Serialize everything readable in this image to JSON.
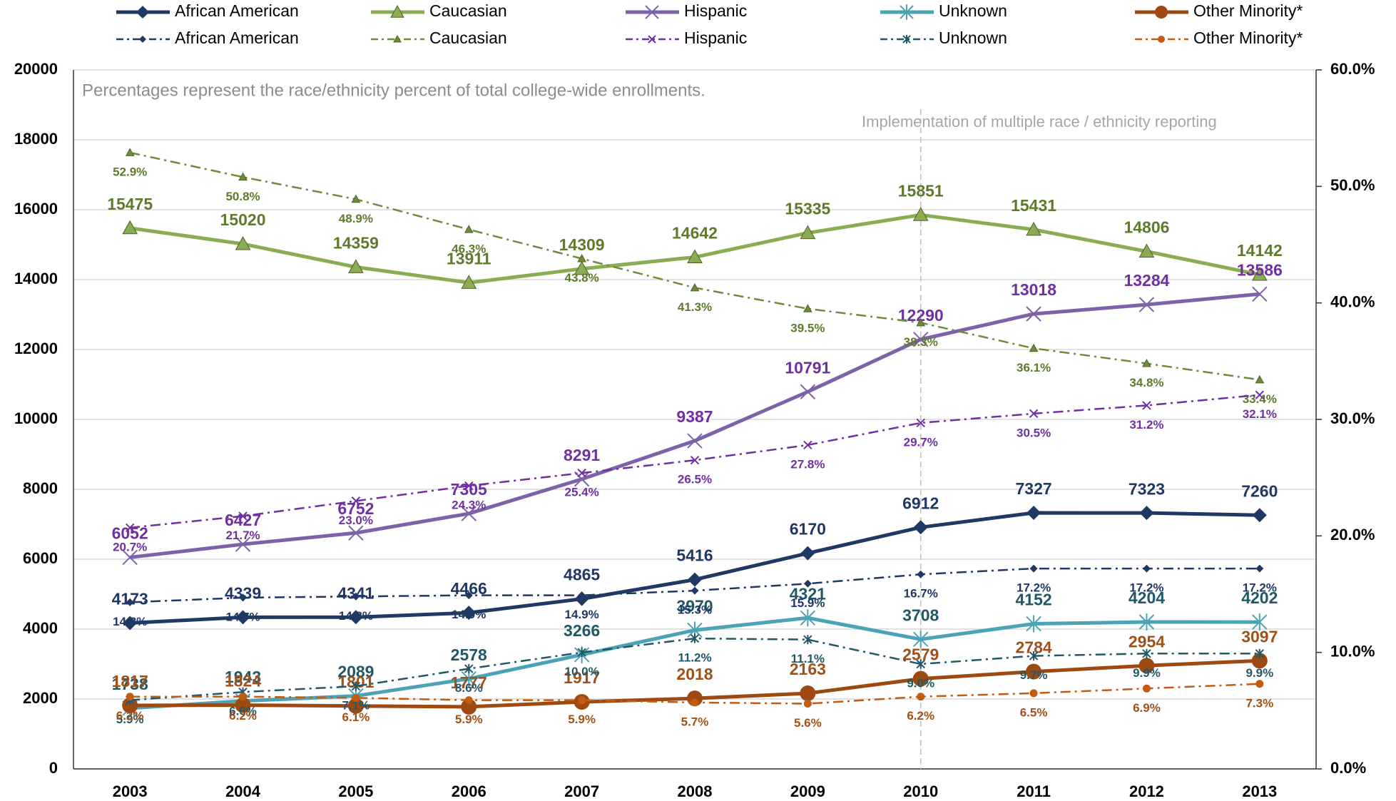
{
  "chart_data": {
    "type": "line",
    "categories": [
      "2003",
      "2004",
      "2005",
      "2006",
      "2007",
      "2008",
      "2009",
      "2010",
      "2011",
      "2012",
      "2013"
    ],
    "ylim": [
      0,
      20000
    ],
    "yticks": [
      0,
      2000,
      4000,
      6000,
      8000,
      10000,
      12000,
      14000,
      16000,
      18000,
      20000
    ],
    "y2lim": [
      0,
      60
    ],
    "y2ticks": [
      {
        "value": 0,
        "label": "0.0%"
      },
      {
        "value": 10,
        "label": "10.0%"
      },
      {
        "value": 20,
        "label": "20.0%"
      },
      {
        "value": 30,
        "label": "30.0%"
      },
      {
        "value": 40,
        "label": "40.0%"
      },
      {
        "value": 50,
        "label": "50.0%"
      },
      {
        "value": 60,
        "label": "60.0%"
      }
    ],
    "grid": true,
    "legend": "top",
    "annotations": [
      {
        "text": "Percentages represent the race/ethnicity percent of total college-wide enrollments."
      },
      {
        "text": "Implementation of multiple race / ethnicity reporting",
        "x": "2010"
      }
    ],
    "series": [
      {
        "name": "African American",
        "color": "#1f3864",
        "label_color": "#1f3864",
        "marker": "diamond",
        "style": "solid",
        "values": [
          4173,
          4339,
          4341,
          4466,
          4865,
          5416,
          6170,
          6912,
          7327,
          7323,
          7260
        ]
      },
      {
        "name": "Caucasian",
        "color": "#8aac52",
        "label_color": "#5f7a2c",
        "marker": "triangle",
        "style": "solid",
        "values": [
          15475,
          15020,
          14359,
          13911,
          14309,
          14642,
          15335,
          15851,
          15431,
          14806,
          14142
        ]
      },
      {
        "name": "Hispanic",
        "color": "#7d62a8",
        "label_color": "#7030a0",
        "marker": "x",
        "style": "solid",
        "values": [
          6052,
          6427,
          6752,
          7305,
          8291,
          9387,
          10791,
          12290,
          13018,
          13284,
          13586
        ]
      },
      {
        "name": "Unknown",
        "color": "#4ba3b5",
        "label_color": "#215868",
        "marker": "asterisk",
        "style": "solid",
        "values": [
          1738,
          1943,
          2089,
          2578,
          3266,
          3970,
          4321,
          3708,
          4152,
          4204,
          4202
        ]
      },
      {
        "name": "Other Minority*",
        "color": "#9c4a12",
        "label_color": "#a0511a",
        "marker": "circle",
        "style": "solid",
        "values": [
          1817,
          1824,
          1801,
          1777,
          1917,
          2018,
          2163,
          2579,
          2784,
          2954,
          3097
        ]
      },
      {
        "name": "African American",
        "color": "#1f3864",
        "label_color": "#1f3864",
        "marker": "diamond",
        "style": "dashdot",
        "axis": "y2",
        "values": [
          14.3,
          14.7,
          14.8,
          14.9,
          14.9,
          15.3,
          15.9,
          16.7,
          17.2,
          17.2,
          17.2
        ],
        "value_labels": [
          "14.3%",
          "14.7%",
          "14.8%",
          "14.9%",
          "14.9%",
          "15.3%",
          "15.9%",
          "16.7%",
          "17.2%",
          "17.2%",
          "17.2%"
        ]
      },
      {
        "name": "Caucasian",
        "color": "#6e8b3d",
        "label_color": "#5f7a2c",
        "marker": "triangle",
        "style": "dashdot",
        "axis": "y2",
        "values": [
          52.9,
          50.8,
          48.9,
          46.3,
          43.8,
          41.3,
          39.5,
          38.3,
          36.1,
          34.8,
          33.4
        ],
        "value_labels": [
          "52.9%",
          "50.8%",
          "48.9%",
          "46.3%",
          "43.8%",
          "41.3%",
          "39.5%",
          "38.3%",
          "36.1%",
          "34.8%",
          "33.4%"
        ]
      },
      {
        "name": "Hispanic",
        "color": "#7030a0",
        "label_color": "#7030a0",
        "marker": "x",
        "style": "dashdot",
        "axis": "y2",
        "values": [
          20.7,
          21.7,
          23.0,
          24.3,
          25.4,
          26.5,
          27.8,
          29.7,
          30.5,
          31.2,
          32.1
        ],
        "value_labels": [
          "20.7%",
          "21.7%",
          "23.0%",
          "24.3%",
          "25.4%",
          "26.5%",
          "27.8%",
          "29.7%",
          "30.5%",
          "31.2%",
          "32.1%"
        ]
      },
      {
        "name": "Unknown",
        "color": "#215868",
        "label_color": "#215868",
        "marker": "asterisk",
        "style": "dashdot",
        "axis": "y2",
        "values": [
          5.9,
          6.6,
          7.1,
          8.6,
          10.0,
          11.2,
          11.1,
          9.0,
          9.7,
          9.9,
          9.9
        ],
        "value_labels": [
          "5.9%",
          "6.6%",
          "7.1%",
          "8.6%",
          "10.0%",
          "11.2%",
          "11.1%",
          "9.0%",
          "9.7%",
          "9.9%",
          "9.9%"
        ]
      },
      {
        "name": "Other Minority*",
        "color": "#c55a11",
        "label_color": "#a0511a",
        "marker": "circle",
        "style": "dashdot",
        "axis": "y2",
        "values": [
          6.2,
          6.2,
          6.1,
          5.9,
          5.9,
          5.7,
          5.6,
          6.2,
          6.5,
          6.9,
          7.3
        ],
        "value_labels": [
          "6.2%",
          "6.2%",
          "6.1%",
          "5.9%",
          "5.9%",
          "5.7%",
          "5.6%",
          "6.2%",
          "6.5%",
          "6.9%",
          "7.3%"
        ]
      }
    ]
  }
}
